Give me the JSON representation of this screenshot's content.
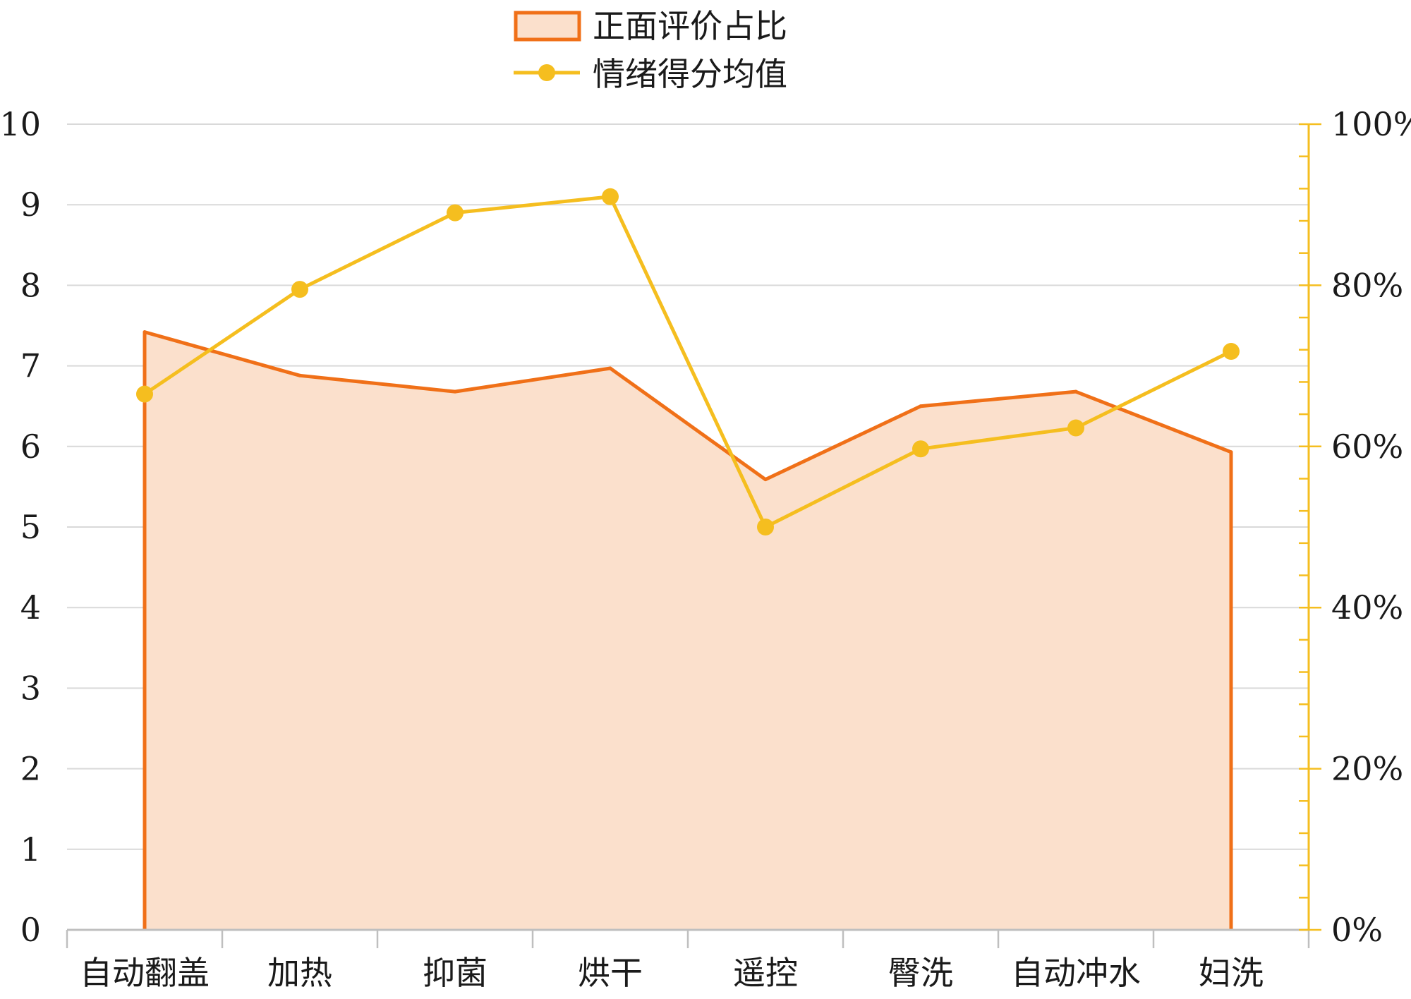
{
  "chart_data": {
    "type": "area+line",
    "categories": [
      "自动翻盖",
      "加热",
      "抑菌",
      "烘干",
      "遥控",
      "臀洗",
      "自动冲水",
      "妇洗"
    ],
    "series": [
      {
        "name": "正面评价占比",
        "type": "area",
        "axis": "right",
        "values": [
          74.2,
          68.8,
          66.8,
          69.7,
          55.9,
          65.0,
          66.8,
          59.3
        ],
        "fill": "#fbe0cc",
        "stroke": "#f07018"
      },
      {
        "name": "情绪得分均值",
        "type": "line",
        "axis": "left",
        "values": [
          6.65,
          7.95,
          8.9,
          9.1,
          5.0,
          5.97,
          6.23,
          7.18
        ],
        "stroke": "#f5be1f",
        "marker": "circle"
      }
    ],
    "y_left": {
      "min": 0,
      "max": 10,
      "step": 1,
      "ticks": [
        "0",
        "1",
        "2",
        "3",
        "4",
        "5",
        "6",
        "7",
        "8",
        "9",
        "10"
      ]
    },
    "y_right": {
      "min": 0,
      "max": 100,
      "step": 20,
      "unit": "%",
      "ticks": [
        "0%",
        "20%",
        "40%",
        "60%",
        "80%",
        "100%"
      ]
    },
    "legend": "top-center",
    "grid": true
  }
}
